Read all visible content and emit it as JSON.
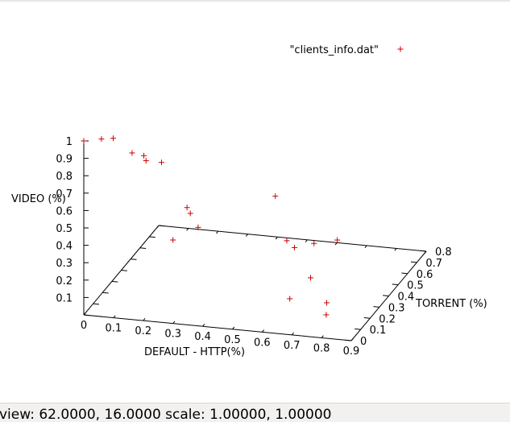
{
  "status_bar": {
    "text": "view: 62.0000, 16.0000   scale: 1.00000, 1.00000"
  },
  "chart_data": {
    "type": "scatter",
    "title": "",
    "xlabel": "DEFAULT - HTTP(%)",
    "ylabel": "TORRENT (%)",
    "zlabel": "VIDEO (%)",
    "x_ticks": [
      "0",
      "0.1",
      "0.2",
      "0.3",
      "0.4",
      "0.5",
      "0.6",
      "0.7",
      "0.8",
      "0.9"
    ],
    "y_ticks": [
      "0",
      "0.1",
      "0.2",
      "0.3",
      "0.4",
      "0.5",
      "0.6",
      "0.7",
      "0.8"
    ],
    "z_ticks": [
      "0.1",
      "0.2",
      "0.3",
      "0.4",
      "0.5",
      "0.6",
      "0.7",
      "0.8",
      "0.9",
      "1"
    ],
    "xlim": [
      0,
      0.9
    ],
    "ylim": [
      0,
      0.8
    ],
    "zlim": [
      0,
      1
    ],
    "view": {
      "rot_x": 62,
      "rot_z": 16
    },
    "legend_position": "top-right",
    "color": "#cc0000",
    "series": [
      {
        "name": "\"clients_info.dat\"",
        "points": [
          {
            "x": 0.0,
            "y": 0.0,
            "z": 1.0
          },
          {
            "x": 0.05,
            "y": 0.03,
            "z": 1.0
          },
          {
            "x": 0.08,
            "y": 0.06,
            "z": 0.99
          },
          {
            "x": 0.15,
            "y": 0.04,
            "z": 0.93
          },
          {
            "x": 0.18,
            "y": 0.07,
            "z": 0.9
          },
          {
            "x": 0.2,
            "y": 0.03,
            "z": 0.9
          },
          {
            "x": 0.23,
            "y": 0.1,
            "z": 0.85
          },
          {
            "x": 0.33,
            "y": 0.09,
            "z": 0.58
          },
          {
            "x": 0.3,
            "y": 0.15,
            "z": 0.57
          },
          {
            "x": 0.35,
            "y": 0.11,
            "z": 0.49
          },
          {
            "x": 0.3,
            "y": 0.0,
            "z": 0.48
          },
          {
            "x": 0.55,
            "y": 0.3,
            "z": 0.58
          },
          {
            "x": 0.62,
            "y": 0.2,
            "z": 0.4
          },
          {
            "x": 0.63,
            "y": 0.25,
            "z": 0.33
          },
          {
            "x": 0.68,
            "y": 0.3,
            "z": 0.33
          },
          {
            "x": 0.73,
            "y": 0.39,
            "z": 0.3
          },
          {
            "x": 0.69,
            "y": 0.01,
            "z": 0.2
          },
          {
            "x": 0.7,
            "y": 0.2,
            "z": 0.2
          },
          {
            "x": 0.77,
            "y": 0.15,
            "z": 0.1
          },
          {
            "x": 0.8,
            "y": 0.05,
            "z": 0.1
          }
        ]
      }
    ]
  }
}
